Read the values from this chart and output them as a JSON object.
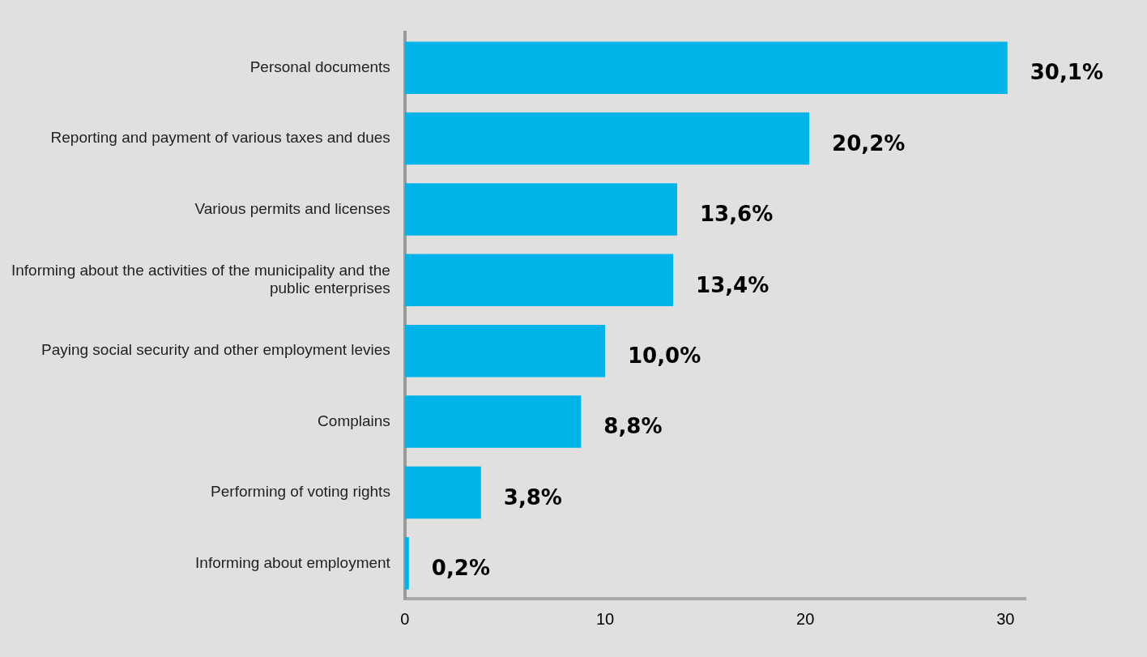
{
  "chart_data": {
    "type": "bar",
    "orientation": "horizontal",
    "categories": [
      "Personal documents",
      "Reporting and payment of various taxes and dues",
      "Various permits and licenses",
      "Informing about the activities of the municipality and the public enterprises",
      "Paying social security and other employment levies",
      "Complains",
      "Performing of voting rights",
      "Informing about employment"
    ],
    "values": [
      30.1,
      20.2,
      13.6,
      13.4,
      10.0,
      8.8,
      3.8,
      0.2
    ],
    "value_labels": [
      "30,1%",
      "20,2%",
      "13,6%",
      "13,4%",
      "10,0%",
      "8,8%",
      "3,8%",
      "0,2%"
    ],
    "color": "#00b4ea",
    "xlim": [
      0,
      31
    ],
    "xticks": [
      0,
      10,
      20,
      30
    ],
    "grid": false,
    "legend": false
  }
}
